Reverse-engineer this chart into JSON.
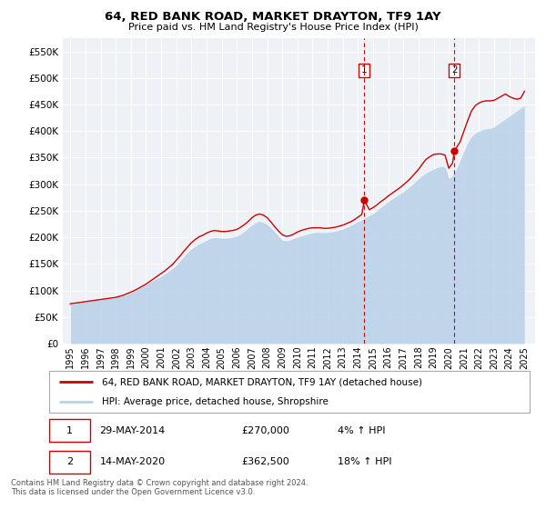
{
  "title": "64, RED BANK ROAD, MARKET DRAYTON, TF9 1AY",
  "subtitle": "Price paid vs. HM Land Registry's House Price Index (HPI)",
  "legend_line1": "64, RED BANK ROAD, MARKET DRAYTON, TF9 1AY (detached house)",
  "legend_line2": "HPI: Average price, detached house, Shropshire",
  "annotation1": {
    "label": "1",
    "date": "29-MAY-2014",
    "price": "£270,000",
    "pct": "4% ↑ HPI",
    "x_year": 2014.42
  },
  "annotation2": {
    "label": "2",
    "date": "14-MAY-2020",
    "price": "£362,500",
    "pct": "18% ↑ HPI",
    "x_year": 2020.37
  },
  "footer": "Contains HM Land Registry data © Crown copyright and database right 2024.\nThis data is licensed under the Open Government Licence v3.0.",
  "hpi_color": "#b8d0e8",
  "price_color": "#cc0000",
  "background_color": "#ffffff",
  "plot_background": "#eef2f7",
  "grid_color": "#ffffff",
  "annotation_color": "#cc0000",
  "dashed_line_color": "#cc0000",
  "ylim": [
    0,
    575000
  ],
  "yticks": [
    0,
    50000,
    100000,
    150000,
    200000,
    250000,
    300000,
    350000,
    400000,
    450000,
    500000,
    550000
  ],
  "xlim_start": 1994.5,
  "xlim_end": 2025.7,
  "xtick_years": [
    1995,
    1996,
    1997,
    1998,
    1999,
    2000,
    2001,
    2002,
    2003,
    2004,
    2005,
    2006,
    2007,
    2008,
    2009,
    2010,
    2011,
    2012,
    2013,
    2014,
    2015,
    2016,
    2017,
    2018,
    2019,
    2020,
    2021,
    2022,
    2023,
    2024,
    2025
  ],
  "hpi_years": [
    1995.0,
    1995.25,
    1995.5,
    1995.75,
    1996.0,
    1996.25,
    1996.5,
    1996.75,
    1997.0,
    1997.25,
    1997.5,
    1997.75,
    1998.0,
    1998.25,
    1998.5,
    1998.75,
    1999.0,
    1999.25,
    1999.5,
    1999.75,
    2000.0,
    2000.25,
    2000.5,
    2000.75,
    2001.0,
    2001.25,
    2001.5,
    2001.75,
    2002.0,
    2002.25,
    2002.5,
    2002.75,
    2003.0,
    2003.25,
    2003.5,
    2003.75,
    2004.0,
    2004.25,
    2004.5,
    2004.75,
    2005.0,
    2005.25,
    2005.5,
    2005.75,
    2006.0,
    2006.25,
    2006.5,
    2006.75,
    2007.0,
    2007.25,
    2007.5,
    2007.75,
    2008.0,
    2008.25,
    2008.5,
    2008.75,
    2009.0,
    2009.25,
    2009.5,
    2009.75,
    2010.0,
    2010.25,
    2010.5,
    2010.75,
    2011.0,
    2011.25,
    2011.5,
    2011.75,
    2012.0,
    2012.25,
    2012.5,
    2012.75,
    2013.0,
    2013.25,
    2013.5,
    2013.75,
    2014.0,
    2014.25,
    2014.5,
    2014.75,
    2015.0,
    2015.25,
    2015.5,
    2015.75,
    2016.0,
    2016.25,
    2016.5,
    2016.75,
    2017.0,
    2017.25,
    2017.5,
    2017.75,
    2018.0,
    2018.25,
    2018.5,
    2018.75,
    2019.0,
    2019.25,
    2019.5,
    2019.75,
    2020.0,
    2020.25,
    2020.5,
    2020.75,
    2021.0,
    2021.25,
    2021.5,
    2021.75,
    2022.0,
    2022.25,
    2022.5,
    2022.75,
    2023.0,
    2023.25,
    2023.5,
    2023.75,
    2024.0,
    2024.25,
    2024.5,
    2024.75,
    2025.0
  ],
  "hpi_values": [
    72000,
    73000,
    74000,
    75000,
    76000,
    77000,
    78000,
    79000,
    80000,
    81000,
    82000,
    83000,
    84000,
    86000,
    88000,
    90000,
    93000,
    96000,
    100000,
    104000,
    108000,
    112000,
    116000,
    120000,
    124000,
    128000,
    133000,
    138000,
    144000,
    152000,
    160000,
    168000,
    175000,
    180000,
    185000,
    188000,
    192000,
    195000,
    197000,
    197000,
    196000,
    196000,
    197000,
    198000,
    200000,
    203000,
    208000,
    214000,
    220000,
    225000,
    228000,
    226000,
    222000,
    216000,
    208000,
    200000,
    193000,
    191000,
    192000,
    195000,
    198000,
    200000,
    202000,
    204000,
    206000,
    207000,
    207000,
    207000,
    207000,
    208000,
    209000,
    211000,
    213000,
    216000,
    219000,
    223000,
    227000,
    230000,
    234000,
    238000,
    242000,
    247000,
    253000,
    258000,
    264000,
    269000,
    274000,
    278000,
    283000,
    288000,
    294000,
    300000,
    307000,
    313000,
    318000,
    322000,
    326000,
    329000,
    331000,
    330000,
    308000,
    312000,
    322000,
    338000,
    356000,
    372000,
    385000,
    393000,
    397000,
    400000,
    402000,
    403000,
    405000,
    410000,
    415000,
    420000,
    425000,
    430000,
    435000,
    440000,
    445000
  ],
  "price_years": [
    1995.0,
    1995.25,
    1995.5,
    1995.75,
    1996.0,
    1996.25,
    1996.5,
    1996.75,
    1997.0,
    1997.25,
    1997.5,
    1997.75,
    1998.0,
    1998.25,
    1998.5,
    1998.75,
    1999.0,
    1999.25,
    1999.5,
    1999.75,
    2000.0,
    2000.25,
    2000.5,
    2000.75,
    2001.0,
    2001.25,
    2001.5,
    2001.75,
    2002.0,
    2002.25,
    2002.5,
    2002.75,
    2003.0,
    2003.25,
    2003.5,
    2003.75,
    2004.0,
    2004.25,
    2004.5,
    2004.75,
    2005.0,
    2005.25,
    2005.5,
    2005.75,
    2006.0,
    2006.25,
    2006.5,
    2006.75,
    2007.0,
    2007.25,
    2007.5,
    2007.75,
    2008.0,
    2008.25,
    2008.5,
    2008.75,
    2009.0,
    2009.25,
    2009.5,
    2009.75,
    2010.0,
    2010.25,
    2010.5,
    2010.75,
    2011.0,
    2011.25,
    2011.5,
    2011.75,
    2012.0,
    2012.25,
    2012.5,
    2012.75,
    2013.0,
    2013.25,
    2013.5,
    2013.75,
    2014.0,
    2014.25,
    2014.42,
    2014.75,
    2015.0,
    2015.25,
    2015.5,
    2015.75,
    2016.0,
    2016.25,
    2016.5,
    2016.75,
    2017.0,
    2017.25,
    2017.5,
    2017.75,
    2018.0,
    2018.25,
    2018.5,
    2018.75,
    2019.0,
    2019.25,
    2019.5,
    2019.75,
    2020.0,
    2020.25,
    2020.37,
    2020.75,
    2021.0,
    2021.25,
    2021.5,
    2021.75,
    2022.0,
    2022.25,
    2022.5,
    2022.75,
    2023.0,
    2023.25,
    2023.5,
    2023.75,
    2024.0,
    2024.25,
    2024.5,
    2024.75,
    2025.0
  ],
  "price_values": [
    75000,
    76000,
    77000,
    78000,
    79000,
    80000,
    81000,
    82000,
    83000,
    84000,
    85000,
    86000,
    87000,
    89000,
    91000,
    94000,
    97000,
    100000,
    104000,
    108000,
    112000,
    117000,
    122000,
    127000,
    132000,
    137000,
    143000,
    149000,
    157000,
    165000,
    174000,
    182000,
    190000,
    196000,
    201000,
    204000,
    208000,
    211000,
    213000,
    212000,
    211000,
    211000,
    212000,
    213000,
    215000,
    219000,
    224000,
    230000,
    237000,
    242000,
    244000,
    242000,
    237000,
    229000,
    220000,
    212000,
    205000,
    202000,
    203000,
    206000,
    210000,
    213000,
    215000,
    217000,
    218000,
    218000,
    218000,
    217000,
    217000,
    218000,
    219000,
    221000,
    223000,
    226000,
    229000,
    233000,
    238000,
    243000,
    270000,
    252000,
    256000,
    261000,
    267000,
    272000,
    278000,
    283000,
    288000,
    293000,
    299000,
    305000,
    312000,
    320000,
    328000,
    338000,
    347000,
    352000,
    356000,
    357000,
    357000,
    355000,
    330000,
    340000,
    362500,
    380000,
    400000,
    420000,
    438000,
    448000,
    453000,
    456000,
    457000,
    457000,
    458000,
    462000,
    466000,
    470000,
    465000,
    462000,
    460000,
    462000,
    475000
  ],
  "sale1_x": 2014.42,
  "sale1_y": 270000,
  "sale2_x": 2020.37,
  "sale2_y": 362500
}
